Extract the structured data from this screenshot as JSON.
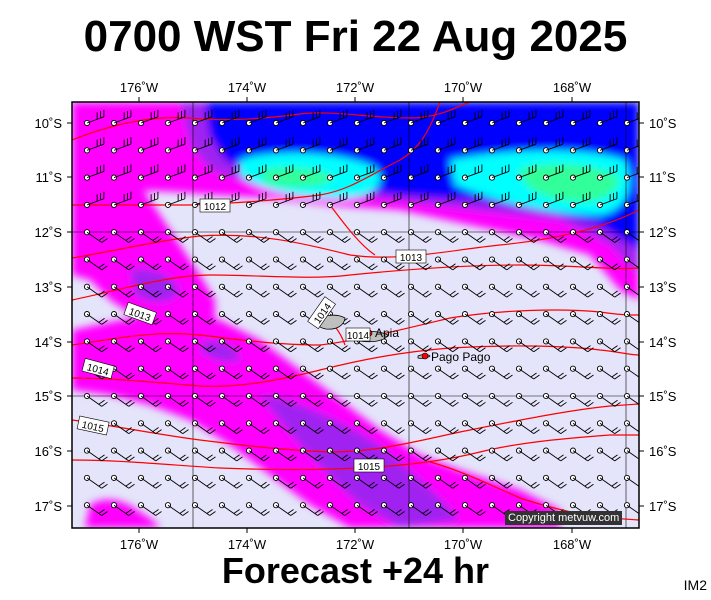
{
  "header": {
    "title": "0700 WST Fri 22 Aug 2025"
  },
  "footer": {
    "forecast": "Forecast +24 hr",
    "image_id": "IM2",
    "copyright": "Copyright metvuw.com"
  },
  "map": {
    "lon_labels": [
      "176˚W",
      "174˚W",
      "172˚W",
      "170˚W",
      "168˚W"
    ],
    "lat_labels": [
      "10˚S",
      "11˚S",
      "12˚S",
      "13˚S",
      "14˚S",
      "15˚S",
      "16˚S",
      "17˚S"
    ],
    "isobar_labels": [
      "1012",
      "1013",
      "1013",
      "1014",
      "1014",
      "1014",
      "1015",
      "1015"
    ],
    "places": [
      "Apia",
      "Pago Pago"
    ],
    "colors": {
      "background": "#e4e4fa",
      "magenta": "#ff00ff",
      "purple": "#a020f0",
      "blue": "#0000ff",
      "cyan": "#00ffff",
      "green": "#00ff7f",
      "isobar": "#ff0000"
    }
  }
}
